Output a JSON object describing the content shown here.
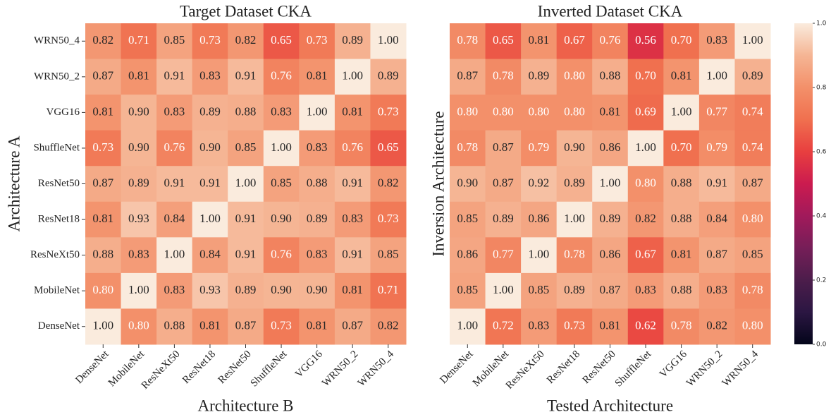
{
  "chart_data": [
    {
      "type": "heatmap",
      "title": "Target Dataset CKA",
      "xlabel": "Architecture B",
      "ylabel": "Architecture A",
      "categories": [
        "DenseNet",
        "MobileNet",
        "ResNeXt50",
        "ResNet18",
        "ResNet50",
        "ShuffleNet",
        "VGG16",
        "WRN50_2",
        "WRN50_4"
      ],
      "rows": [
        "WRN50_4",
        "WRN50_2",
        "VGG16",
        "ShuffleNet",
        "ResNet50",
        "ResNet18",
        "ResNeXt50",
        "MobileNet",
        "DenseNet"
      ],
      "values": [
        [
          0.82,
          0.71,
          0.85,
          0.73,
          0.82,
          0.65,
          0.73,
          0.89,
          1
        ],
        [
          0.87,
          0.81,
          0.91,
          0.83,
          0.91,
          0.76,
          0.81,
          1,
          0.89
        ],
        [
          0.81,
          0.9,
          0.83,
          0.89,
          0.88,
          0.83,
          1,
          0.81,
          0.73
        ],
        [
          0.73,
          0.9,
          0.76,
          0.9,
          0.85,
          1,
          0.83,
          0.76,
          0.65
        ],
        [
          0.87,
          0.89,
          0.91,
          0.91,
          1,
          0.85,
          0.88,
          0.91,
          0.82
        ],
        [
          0.81,
          0.93,
          0.84,
          1,
          0.91,
          0.9,
          0.89,
          0.83,
          0.73
        ],
        [
          0.88,
          0.83,
          1,
          0.84,
          0.91,
          0.76,
          0.83,
          0.91,
          0.85
        ],
        [
          0.8,
          1,
          0.83,
          0.93,
          0.89,
          0.9,
          0.9,
          0.81,
          0.71
        ],
        [
          1,
          0.8,
          0.88,
          0.81,
          0.87,
          0.73,
          0.81,
          0.87,
          0.82
        ]
      ],
      "value_labels": [
        [
          "0.82",
          "0.71",
          "0.85",
          "0.73",
          "0.82",
          "0.65",
          "0.73",
          "0.89",
          "1.00"
        ],
        [
          "0.87",
          "0.81",
          "0.91",
          "0.83",
          "0.91",
          "0.76",
          "0.81",
          "1.00",
          "0.89"
        ],
        [
          "0.81",
          "0.90",
          "0.83",
          "0.89",
          "0.88",
          "0.83",
          "1.00",
          "0.81",
          "0.73"
        ],
        [
          "0.73",
          "0.90",
          "0.76",
          "0.90",
          "0.85",
          "1.00",
          "0.83",
          "0.76",
          "0.65"
        ],
        [
          "0.87",
          "0.89",
          "0.91",
          "0.91",
          "1.00",
          "0.85",
          "0.88",
          "0.91",
          "0.82"
        ],
        [
          "0.81",
          "0.93",
          "0.84",
          "1.00",
          "0.91",
          "0.90",
          "0.89",
          "0.83",
          "0.73"
        ],
        [
          "0.88",
          "0.83",
          "1.00",
          "0.84",
          "0.91",
          "0.76",
          "0.83",
          "0.91",
          "0.85"
        ],
        [
          "0.80",
          "1.00",
          "0.83",
          "0.93",
          "0.89",
          "0.90",
          "0.90",
          "0.81",
          "0.71"
        ],
        [
          "1.00",
          "0.80",
          "0.88",
          "0.81",
          "0.87",
          "0.73",
          "0.81",
          "0.87",
          "0.82"
        ]
      ]
    },
    {
      "type": "heatmap",
      "title": "Inverted Dataset CKA",
      "xlabel": "Tested Architecture",
      "ylabel": "Inversion Architecture",
      "categories": [
        "DenseNet",
        "MobileNet",
        "ResNeXt50",
        "ResNet18",
        "ResNet50",
        "ShuffleNet",
        "VGG16",
        "WRN50_2",
        "WRN50_4"
      ],
      "values": [
        [
          0.78,
          0.65,
          0.81,
          0.67,
          0.76,
          0.56,
          0.7,
          0.83,
          1
        ],
        [
          0.87,
          0.78,
          0.89,
          0.8,
          0.88,
          0.7,
          0.81,
          1,
          0.89
        ],
        [
          0.8,
          0.8,
          0.8,
          0.8,
          0.81,
          0.69,
          1,
          0.77,
          0.74
        ],
        [
          0.78,
          0.87,
          0.79,
          0.9,
          0.86,
          1,
          0.7,
          0.79,
          0.74
        ],
        [
          0.9,
          0.87,
          0.92,
          0.89,
          1,
          0.8,
          0.88,
          0.91,
          0.87
        ],
        [
          0.85,
          0.89,
          0.86,
          1,
          0.89,
          0.82,
          0.88,
          0.84,
          0.8
        ],
        [
          0.86,
          0.77,
          1,
          0.78,
          0.86,
          0.67,
          0.81,
          0.87,
          0.85
        ],
        [
          0.85,
          1,
          0.85,
          0.89,
          0.87,
          0.83,
          0.88,
          0.83,
          0.78
        ],
        [
          1,
          0.72,
          0.83,
          0.73,
          0.81,
          0.62,
          0.78,
          0.82,
          0.8
        ]
      ],
      "value_labels": [
        [
          "0.78",
          "0.65",
          "0.81",
          "0.67",
          "0.76",
          "0.56",
          "0.70",
          "0.83",
          "1.00"
        ],
        [
          "0.87",
          "0.78",
          "0.89",
          "0.80",
          "0.88",
          "0.70",
          "0.81",
          "1.00",
          "0.89"
        ],
        [
          "0.80",
          "0.80",
          "0.80",
          "0.80",
          "0.81",
          "0.69",
          "1.00",
          "0.77",
          "0.74"
        ],
        [
          "0.78",
          "0.87",
          "0.79",
          "0.90",
          "0.86",
          "1.00",
          "0.70",
          "0.79",
          "0.74"
        ],
        [
          "0.90",
          "0.87",
          "0.92",
          "0.89",
          "1.00",
          "0.80",
          "0.88",
          "0.91",
          "0.87"
        ],
        [
          "0.85",
          "0.89",
          "0.86",
          "1.00",
          "0.89",
          "0.82",
          "0.88",
          "0.84",
          "0.80"
        ],
        [
          "0.86",
          "0.77",
          "1.00",
          "0.78",
          "0.86",
          "0.67",
          "0.81",
          "0.87",
          "0.85"
        ],
        [
          "0.85",
          "1.00",
          "0.85",
          "0.89",
          "0.87",
          "0.83",
          "0.88",
          "0.83",
          "0.78"
        ],
        [
          "1.00",
          "0.72",
          "0.83",
          "0.73",
          "0.81",
          "0.62",
          "0.78",
          "0.82",
          "0.80"
        ]
      ]
    },
    {
      "type": "colorbar",
      "ylim": [
        0,
        1
      ],
      "yticks": [
        {
          "value": 0,
          "label": "0.0"
        },
        0.2,
        0.4,
        0.6,
        0.8,
        {
          "value": 1,
          "label": "1.0"
        }
      ],
      "colors": [
        "#03051a",
        "#2b1642",
        "#4c1d4b",
        "#761e58",
        "#a11a5b",
        "#cb1b4f",
        "#e83f3f",
        "#f0704f",
        "#f3906a",
        "#f5b594",
        "#faebdd"
      ]
    }
  ]
}
